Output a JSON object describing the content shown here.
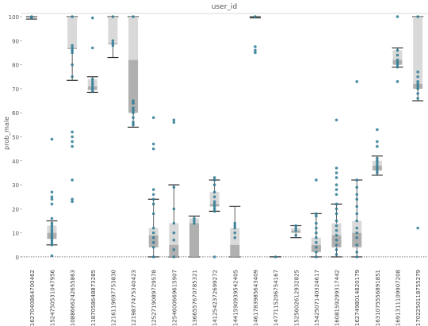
{
  "chart_data": {
    "type": "box",
    "title": "user_id",
    "ylabel": "prob_male",
    "xlabel": "",
    "ylim": [
      -4,
      102
    ],
    "yticks": [
      0,
      10,
      20,
      30,
      40,
      50,
      60,
      70,
      80,
      90,
      100
    ],
    "grid": false,
    "colors": {
      "box_dark": "#b0b0b0",
      "box_light": "#d9d9d9",
      "point": "#2e7b94",
      "whisker": "#333333",
      "zero_line": "#555555"
    },
    "categories": [
      "1627040864700462",
      "1524750531047956",
      "1088666242655863",
      "1187058648873285",
      "1216119697753830",
      "1219877475340423",
      "1252719089729578",
      "1254600669615907",
      "1366557670785321",
      "1412542372699272",
      "1441590939542405",
      "1461783985643409",
      "1477115206754167",
      "1525602612932825",
      "1542507140324617",
      "1608159299317442",
      "1627498014820179",
      "1631075556891851",
      "1691311109907208",
      "1702250118755279"
    ],
    "boxes": [
      {
        "low": 99,
        "q1": 99.5,
        "median": 100,
        "q3": 100,
        "high": 100,
        "points": [
          100,
          99.6
        ]
      },
      {
        "low": 5,
        "q1": 7.5,
        "median": 10,
        "q3": 13,
        "high": 15,
        "points": [
          0.5,
          5,
          6,
          7,
          8,
          9,
          10,
          11,
          12,
          13,
          14,
          16,
          22,
          24,
          25,
          27,
          49
        ]
      },
      {
        "low": 73.5,
        "q1": 86.5,
        "median": 87,
        "q3": 100,
        "high": 100,
        "points": [
          23,
          24,
          32,
          46,
          48,
          50,
          52,
          75,
          80,
          85,
          86,
          87,
          88,
          100
        ]
      },
      {
        "low": 68.5,
        "q1": 69.5,
        "median": 71,
        "q3": 74,
        "high": 75,
        "points": [
          69,
          70,
          71,
          72,
          73,
          74,
          87,
          99.5
        ]
      },
      {
        "low": 83,
        "q1": 88.5,
        "median": 89,
        "q3": 100,
        "high": 100,
        "points": [
          88,
          89,
          90,
          100
        ]
      },
      {
        "low": 54,
        "q1": 60,
        "median": 82,
        "q3": 100,
        "high": 100,
        "points": [
          55,
          56,
          58,
          60,
          61,
          62,
          64,
          65,
          100
        ]
      },
      {
        "low": 0,
        "q1": 4,
        "median": 9,
        "q3": 12,
        "high": 24,
        "points": [
          0,
          4,
          6,
          8,
          10,
          12,
          18,
          22,
          24,
          26,
          28,
          45,
          47,
          58
        ]
      },
      {
        "low": 0,
        "q1": 0,
        "median": 5,
        "q3": 14,
        "high": 30,
        "points": [
          0,
          3,
          7,
          10,
          14,
          20,
          29,
          56,
          57
        ]
      },
      {
        "low": 0,
        "q1": 0,
        "median": 14,
        "q3": 16,
        "high": 17,
        "points": [
          14,
          15,
          16
        ]
      },
      {
        "low": 19,
        "q1": 21,
        "median": 22,
        "q3": 27,
        "high": 32,
        "points": [
          0,
          19,
          20,
          21,
          22,
          23,
          25,
          27,
          30,
          32,
          33
        ]
      },
      {
        "low": 0,
        "q1": 0,
        "median": 5,
        "q3": 12,
        "high": 21,
        "points": [
          8,
          10,
          12,
          13,
          14
        ]
      },
      {
        "low": 99.5,
        "q1": 100,
        "median": 100,
        "q3": 100,
        "high": 100,
        "points": [
          85,
          86,
          87.5,
          100
        ]
      },
      {
        "low": 0,
        "q1": 0,
        "median": 0,
        "q3": 0,
        "high": 0,
        "points": [
          0
        ]
      },
      {
        "low": 8,
        "q1": 10,
        "median": 11,
        "q3": 12,
        "high": 13,
        "points": [
          9,
          11,
          12,
          13
        ]
      },
      {
        "low": 0,
        "q1": 2,
        "median": 5,
        "q3": 8,
        "high": 18,
        "points": [
          0,
          2,
          4,
          6,
          8,
          10,
          12,
          14,
          17,
          18,
          32
        ]
      },
      {
        "low": 0,
        "q1": 4,
        "median": 9,
        "q3": 14,
        "high": 22,
        "points": [
          1,
          3,
          5,
          7,
          9,
          11,
          13,
          15,
          18,
          20,
          22,
          26,
          28,
          30,
          33,
          35,
          37,
          57
        ]
      },
      {
        "low": 0,
        "q1": 4,
        "median": 10,
        "q3": 15,
        "high": 32,
        "points": [
          0,
          2,
          5,
          8,
          10,
          12,
          15,
          18,
          21,
          24,
          26,
          29,
          32,
          73
        ]
      },
      {
        "low": 34,
        "q1": 36,
        "median": 38,
        "q3": 40,
        "high": 42,
        "points": [
          35,
          36,
          37,
          38,
          39,
          40,
          41,
          46,
          48,
          53
        ]
      },
      {
        "low": 79,
        "q1": 80,
        "median": 82,
        "q3": 86,
        "high": 87,
        "points": [
          73,
          79,
          80,
          81,
          82,
          84,
          86,
          100
        ]
      },
      {
        "low": 65,
        "q1": 70,
        "median": 72,
        "q3": 100,
        "high": 100,
        "points": [
          12,
          66,
          68,
          70,
          71,
          72,
          73,
          75,
          77,
          100
        ]
      }
    ]
  }
}
